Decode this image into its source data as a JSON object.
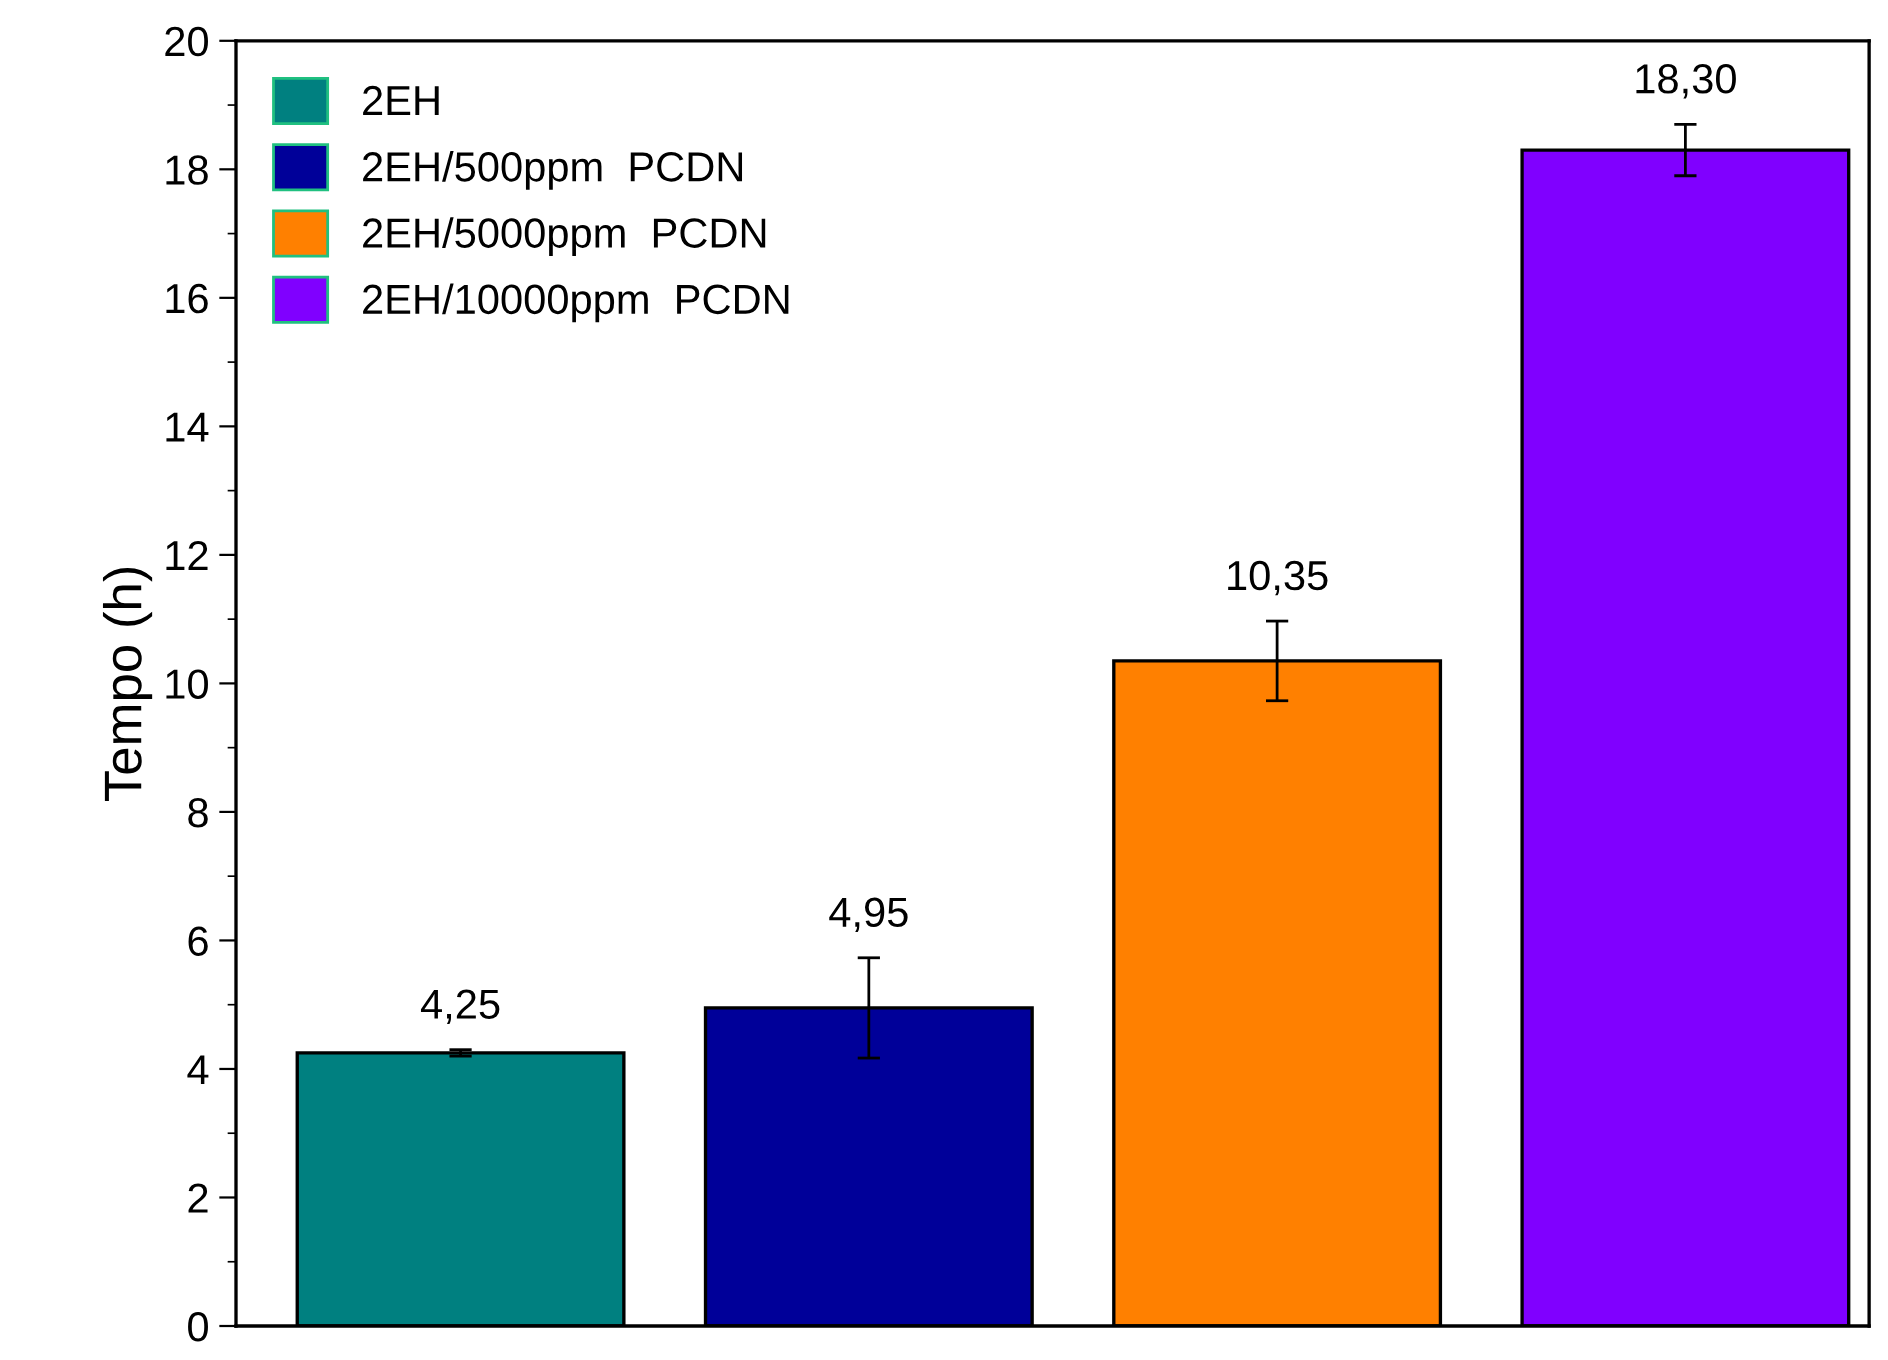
{
  "chart_data": {
    "type": "bar",
    "ylabel": "Tempo (h)",
    "categories": [
      null,
      null,
      null,
      null
    ],
    "series": [
      {
        "name": "2EH",
        "color": "#008080",
        "values": [
          4.25,
          null,
          null,
          null
        ],
        "errors": [
          0.05,
          null,
          null,
          null
        ],
        "value_labels": [
          "4,25",
          null,
          null,
          null
        ]
      },
      {
        "name": "2EH/500ppm  PCDN",
        "color": "#000099",
        "values": [
          null,
          4.95,
          null,
          null
        ],
        "errors": [
          null,
          0.78,
          null,
          null
        ],
        "value_labels": [
          null,
          "4,95",
          null,
          null
        ]
      },
      {
        "name": "2EH/5000ppm  PCDN",
        "color": "#ff8000",
        "values": [
          null,
          null,
          10.35,
          null
        ],
        "errors": [
          null,
          null,
          0.62,
          null
        ],
        "value_labels": [
          null,
          null,
          "10,35",
          null
        ]
      },
      {
        "name": "2EH/10000ppm  PCDN",
        "color": "#8000ff",
        "values": [
          null,
          null,
          null,
          18.3
        ],
        "errors": [
          null,
          null,
          null,
          0.4
        ],
        "value_labels": [
          null,
          null,
          null,
          "18,30"
        ]
      }
    ],
    "ylim": [
      0,
      20
    ],
    "yticks": [
      0,
      2,
      4,
      6,
      8,
      10,
      12,
      14,
      16,
      18,
      20
    ],
    "legend": "top left",
    "grid": false
  }
}
